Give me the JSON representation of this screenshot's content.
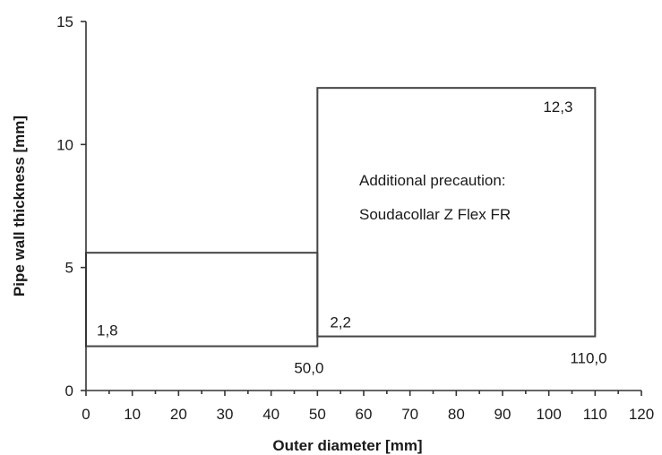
{
  "chart_data": {
    "type": "line",
    "xlabel": "Outer diameter [mm]",
    "ylabel": "Pipe wall thickness [mm]",
    "xlim": [
      0,
      120
    ],
    "ylim": [
      0,
      15
    ],
    "x_ticks": [
      "0",
      "10",
      "20",
      "30",
      "40",
      "50",
      "60",
      "70",
      "80",
      "90",
      "100",
      "110",
      "120"
    ],
    "y_ticks": [
      "0",
      "5",
      "10",
      "15"
    ],
    "grid": false,
    "regions": [
      {
        "x": [
          0,
          50
        ],
        "y": [
          1.8,
          5.6
        ]
      },
      {
        "x": [
          50,
          110
        ],
        "y": [
          2.2,
          12.3
        ]
      }
    ],
    "annotations": [
      {
        "text": "1,8",
        "x": 0,
        "y": 1.8
      },
      {
        "text": "50,0",
        "x": 50,
        "y": 1.8
      },
      {
        "text": "2,2",
        "x": 50,
        "y": 2.2
      },
      {
        "text": "110,0",
        "x": 110,
        "y": 2.2
      },
      {
        "text": "12,3",
        "x": 110,
        "y": 12.3
      }
    ],
    "note_lines": [
      "Additional precaution:",
      "Soudacollar Z Flex FR"
    ]
  }
}
